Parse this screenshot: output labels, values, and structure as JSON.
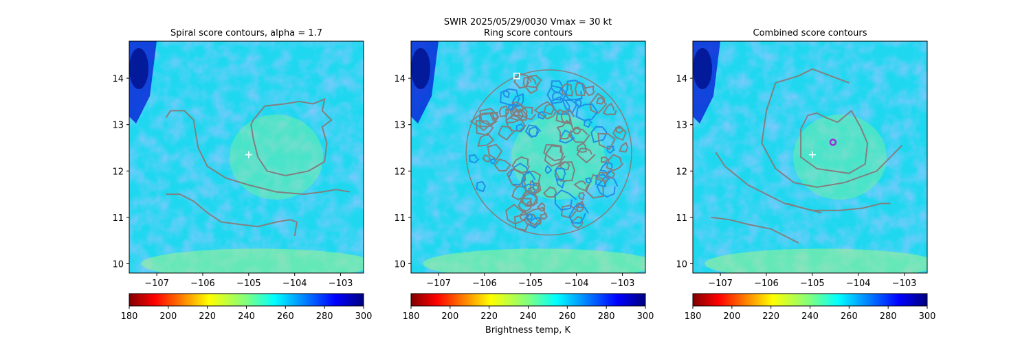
{
  "figure": {
    "suptitle_line1": "SWIR  2025/05/29/0030    Vmax = 30 kt",
    "colorbar_label": "Brightness temp, K"
  },
  "colormap": {
    "name": "jet",
    "reversed": true,
    "range": [
      180,
      300
    ],
    "ticks": [
      "180",
      "200",
      "220",
      "240",
      "260",
      "280",
      "300"
    ]
  },
  "chart_data": [
    {
      "type": "heatmap",
      "title": "Spiral score contours, alpha =  1.7",
      "xlabel": "",
      "ylabel": "",
      "xlim": [
        -107.6,
        -102.5
      ],
      "ylim": [
        9.8,
        14.8
      ],
      "xticks": [
        -107,
        -106,
        -105,
        -104,
        -103
      ],
      "xtick_labels": [
        "−107",
        "−106",
        "−105",
        "−104",
        "−103"
      ],
      "yticks": [
        10,
        11,
        12,
        13,
        14
      ],
      "ytick_labels": [
        "10",
        "11",
        "12",
        "13",
        "14"
      ],
      "first_guess": {
        "lon": -105.0,
        "lat": 12.35
      },
      "contours": [
        [
          [
            -104.9,
            13.1
          ],
          [
            -104.65,
            13.4
          ],
          [
            -104.2,
            13.45
          ],
          [
            -103.9,
            13.5
          ],
          [
            -103.6,
            13.45
          ],
          [
            -103.35,
            13.55
          ],
          [
            -103.4,
            13.3
          ],
          [
            -103.2,
            13.1
          ],
          [
            -103.4,
            12.95
          ],
          [
            -103.3,
            12.6
          ],
          [
            -103.35,
            12.2
          ],
          [
            -103.7,
            12.0
          ],
          [
            -104.2,
            11.9
          ],
          [
            -104.6,
            12.0
          ],
          [
            -104.8,
            12.3
          ],
          [
            -104.9,
            12.7
          ],
          [
            -104.95,
            13.0
          ],
          [
            -104.9,
            13.1
          ]
        ],
        [
          [
            -106.8,
            13.15
          ],
          [
            -106.7,
            13.3
          ],
          [
            -106.4,
            13.3
          ],
          [
            -106.2,
            13.1
          ],
          [
            -106.1,
            12.5
          ],
          [
            -105.9,
            12.1
          ],
          [
            -105.5,
            11.85
          ],
          [
            -105.0,
            11.7
          ],
          [
            -104.4,
            11.55
          ],
          [
            -103.8,
            11.5
          ],
          [
            -103.4,
            11.55
          ],
          [
            -103.1,
            11.6
          ],
          [
            -102.8,
            11.55
          ]
        ],
        [
          [
            -106.8,
            11.5
          ],
          [
            -106.5,
            11.5
          ],
          [
            -106.2,
            11.35
          ],
          [
            -105.9,
            11.1
          ],
          [
            -105.6,
            10.9
          ],
          [
            -105.2,
            10.85
          ],
          [
            -104.8,
            10.8
          ],
          [
            -104.4,
            10.9
          ],
          [
            -104.1,
            10.95
          ],
          [
            -103.95,
            10.9
          ],
          [
            -104.0,
            10.6
          ]
        ]
      ],
      "ring_contours": [],
      "best_center": null,
      "ring_center": null,
      "show_colorbar_label": false
    },
    {
      "type": "heatmap",
      "title": "Ring score contours",
      "xlabel": "",
      "ylabel": "",
      "xlim": [
        -107.6,
        -102.5
      ],
      "ylim": [
        9.8,
        14.8
      ],
      "xticks": [
        -107,
        -106,
        -105,
        -104,
        -103
      ],
      "xtick_labels": [
        "−107",
        "−106",
        "−105",
        "−104",
        "−103"
      ],
      "yticks": [
        10,
        11,
        12,
        13,
        14
      ],
      "ytick_labels": [
        "10",
        "11",
        "12",
        "13",
        "14"
      ],
      "first_guess": null,
      "ring_disk": {
        "lon": -104.6,
        "lat": 12.4,
        "radius_deg": 1.8
      },
      "ring_center": {
        "lon": -105.3,
        "lat": 14.05
      },
      "contours": [],
      "best_center": null,
      "show_colorbar_label": true
    },
    {
      "type": "heatmap",
      "title": "Combined score contours",
      "xlabel": "",
      "ylabel": "",
      "xlim": [
        -107.6,
        -102.5
      ],
      "ylim": [
        9.8,
        14.8
      ],
      "xticks": [
        -107,
        -106,
        -105,
        -104,
        -103
      ],
      "xtick_labels": [
        "−107",
        "−106",
        "−105",
        "−104",
        "−103"
      ],
      "yticks": [
        10,
        11,
        12,
        13,
        14
      ],
      "ytick_labels": [
        "10",
        "11",
        "12",
        "13",
        "14"
      ],
      "first_guess": {
        "lon": -105.0,
        "lat": 12.35
      },
      "best_center": {
        "lon": -104.55,
        "lat": 12.62
      },
      "contours": [
        [
          [
            -104.45,
            13.05
          ],
          [
            -104.7,
            13.15
          ],
          [
            -104.9,
            13.25
          ],
          [
            -105.1,
            13.2
          ],
          [
            -105.25,
            12.9
          ],
          [
            -105.25,
            12.3
          ],
          [
            -104.9,
            12.05
          ],
          [
            -104.2,
            11.95
          ],
          [
            -103.85,
            12.15
          ],
          [
            -103.8,
            12.6
          ],
          [
            -103.95,
            12.95
          ],
          [
            -104.15,
            13.3
          ],
          [
            -104.45,
            13.05
          ]
        ],
        [
          [
            -104.2,
            13.9
          ],
          [
            -104.6,
            14.05
          ],
          [
            -105.0,
            14.2
          ],
          [
            -105.3,
            14.05
          ],
          [
            -105.8,
            13.9
          ],
          [
            -106.0,
            13.3
          ],
          [
            -106.1,
            12.6
          ],
          [
            -105.8,
            12.05
          ],
          [
            -105.4,
            11.75
          ],
          [
            -104.9,
            11.65
          ],
          [
            -104.3,
            11.75
          ],
          [
            -103.6,
            12.0
          ],
          [
            -103.2,
            12.4
          ],
          [
            -103.05,
            12.55
          ]
        ],
        [
          [
            -107.1,
            12.4
          ],
          [
            -106.9,
            12.1
          ],
          [
            -106.4,
            11.7
          ],
          [
            -105.6,
            11.3
          ],
          [
            -105.0,
            11.15
          ],
          [
            -104.4,
            11.15
          ],
          [
            -103.9,
            11.2
          ],
          [
            -103.5,
            11.3
          ],
          [
            -103.3,
            11.3
          ]
        ],
        [
          [
            -107.2,
            11.0
          ],
          [
            -106.8,
            10.95
          ],
          [
            -106.4,
            10.85
          ],
          [
            -105.9,
            10.75
          ],
          [
            -105.6,
            10.6
          ],
          [
            -105.3,
            10.45
          ]
        ],
        [
          [
            -105.55,
            11.3
          ],
          [
            -105.2,
            11.2
          ],
          [
            -104.8,
            11.1
          ]
        ]
      ],
      "ring_contours": [],
      "ring_center": null,
      "show_colorbar_label": false
    }
  ]
}
